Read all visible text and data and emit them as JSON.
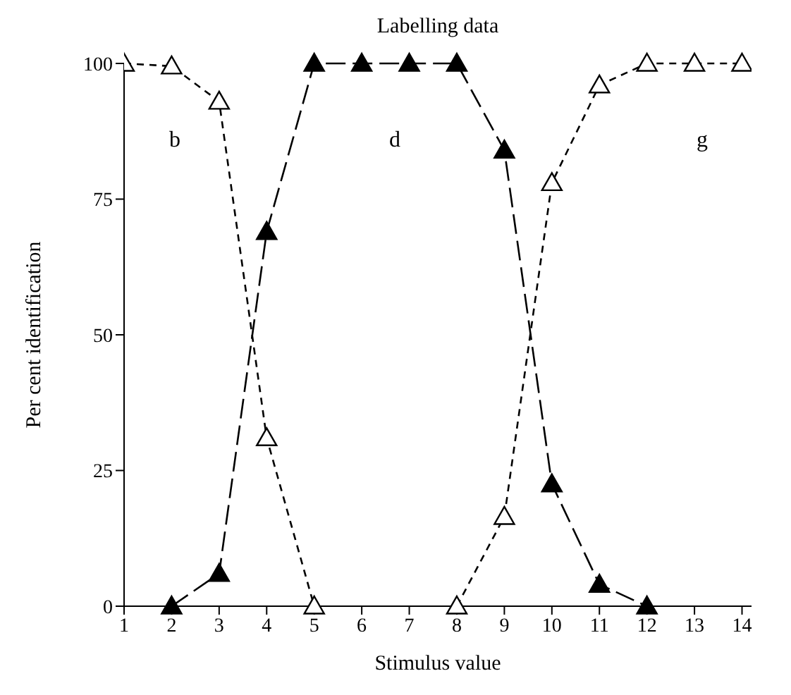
{
  "chart_data": {
    "type": "line",
    "title": "Labelling data",
    "xlabel": "Stimulus value",
    "ylabel": "Per cent identification",
    "xlim": [
      1,
      14.2
    ],
    "xticks": [
      1,
      2,
      3,
      4,
      5,
      6,
      7,
      8,
      9,
      10,
      11,
      12,
      13,
      14
    ],
    "ylim": [
      0,
      100
    ],
    "yticks": [
      0,
      25,
      50,
      75,
      100
    ],
    "marker": "triangle",
    "series": [
      {
        "color": "#000000",
        "line_style": "dotted",
        "x": [
          1,
          2,
          3,
          4,
          5
        ],
        "values": [
          100,
          99.5,
          93,
          31,
          0
        ]
      },
      {
        "color": "#000000",
        "line_style": "dashed",
        "x": [
          2,
          3,
          4,
          5,
          6,
          7,
          8,
          9,
          10,
          11,
          12
        ],
        "values": [
          0,
          6,
          69,
          100,
          100,
          100,
          100,
          84,
          22.5,
          4,
          0
        ]
      },
      {
        "color": "#000000",
        "line_style": "dotted",
        "x": [
          8,
          9,
          10,
          11,
          12,
          13,
          14
        ],
        "values": [
          0,
          16.5,
          78,
          96,
          100,
          100,
          100
        ]
      }
    ],
    "annotations": [
      "b",
      "d",
      "g"
    ]
  }
}
